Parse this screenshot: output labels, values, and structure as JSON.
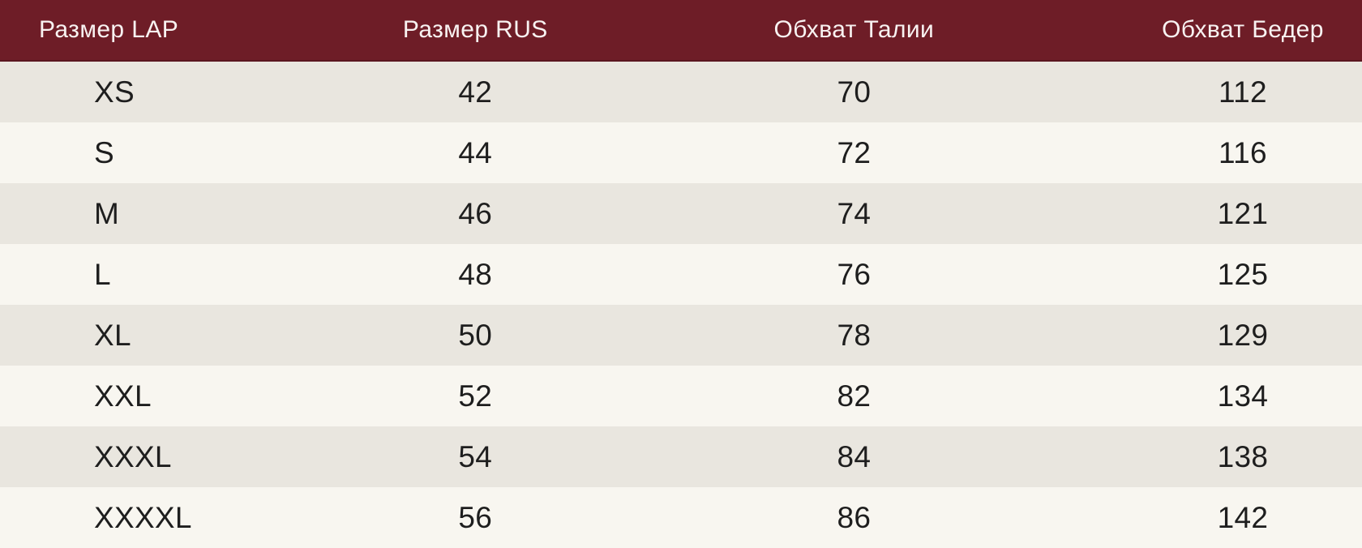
{
  "table": {
    "columns": [
      {
        "label": "Размер LAP"
      },
      {
        "label": "Размер RUS"
      },
      {
        "label": "Обхват Талии"
      },
      {
        "label": "Обхват Бедер"
      }
    ],
    "rows": [
      [
        "XS",
        "42",
        "70",
        "112"
      ],
      [
        "S",
        "44",
        "72",
        "116"
      ],
      [
        "M",
        "46",
        "74",
        "121"
      ],
      [
        "L",
        "48",
        "76",
        "125"
      ],
      [
        "XL",
        "50",
        "78",
        "129"
      ],
      [
        "XXL",
        "52",
        "82",
        "134"
      ],
      [
        "XXXL",
        "54",
        "84",
        "138"
      ],
      [
        "XXXXL",
        "56",
        "86",
        "142"
      ]
    ],
    "colors": {
      "header_bg": "#6E1D27",
      "header_border": "#5A161F",
      "header_text": "#F8F2F1",
      "row_odd_bg": "#E9E6DF",
      "row_even_bg": "#F8F6F0",
      "body_text": "#1E1E1E"
    }
  }
}
